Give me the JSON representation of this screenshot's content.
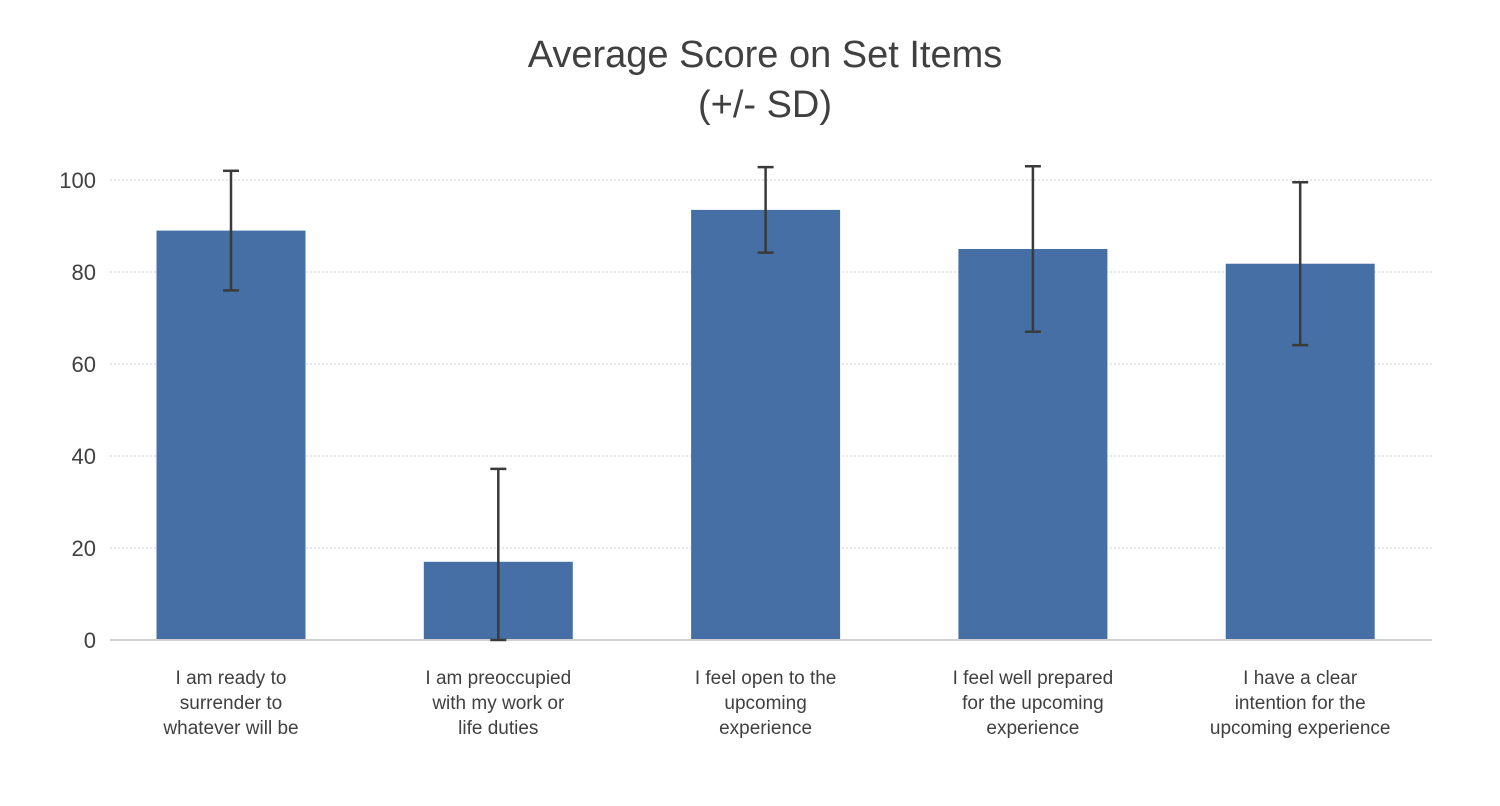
{
  "chart_data": {
    "type": "bar",
    "title_lines": [
      "Average Score on Set Items",
      "(+/- SD)"
    ],
    "categories": [
      [
        "I am ready to",
        "surrender to",
        "whatever will be"
      ],
      [
        "I am preoccupied",
        "with my work or",
        "life duties"
      ],
      [
        "I feel open to the",
        "upcoming",
        "experience"
      ],
      [
        "I feel well prepared",
        "for the upcoming",
        "experience"
      ],
      [
        "I have a clear",
        "intention for the",
        "upcoming experience"
      ]
    ],
    "values": [
      89,
      17,
      93.5,
      85,
      81.8
    ],
    "error_sd": [
      13,
      20.2,
      9.3,
      18,
      17.7
    ],
    "ylim": [
      0,
      100
    ],
    "yticks": [
      "0",
      "20",
      "40",
      "60",
      "80",
      "100"
    ],
    "grid": true,
    "bar_color": "#466fa5",
    "errorbar_color": "#3a3a3a",
    "gridline_color": "#d0d0d0",
    "axis_color": "#d0d0d0"
  }
}
